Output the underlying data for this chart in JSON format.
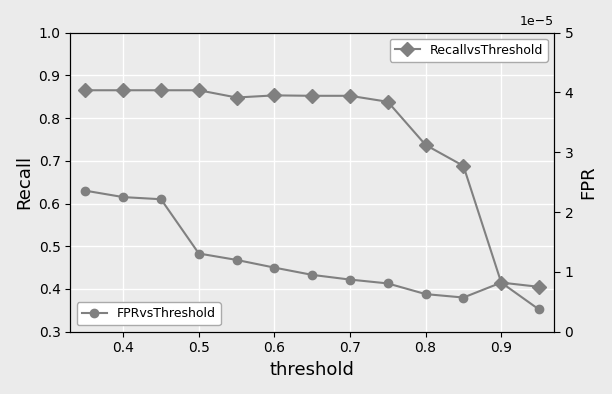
{
  "threshold": [
    0.35,
    0.4,
    0.45,
    0.5,
    0.55,
    0.6,
    0.65,
    0.7,
    0.75,
    0.8,
    0.85,
    0.9,
    0.95
  ],
  "recall": [
    0.865,
    0.865,
    0.865,
    0.865,
    0.848,
    0.853,
    0.852,
    0.852,
    0.838,
    0.737,
    0.688,
    0.415,
    0.405
  ],
  "fpr_left": [
    0.63,
    0.615,
    0.61,
    0.483,
    0.468,
    0.45,
    0.433,
    0.422,
    0.413,
    0.388,
    0.38,
    0.415,
    0.352
  ],
  "recall_label": "RecallvsThreshold",
  "fpr_label": "FPRvsThreshold",
  "xlabel": "threshold",
  "ylabel_left": "Recall",
  "ylabel_right": "FPR",
  "line_color": "#808080",
  "bg_color": "#ebebeb",
  "ylim_left": [
    0.3,
    1.0
  ],
  "ylim_right": [
    0,
    5e-05
  ],
  "xlim": [
    0.33,
    0.97
  ],
  "fpr_scale_min": 0.3,
  "fpr_scale_max": 1.0,
  "fpr_real_min": 0,
  "fpr_real_max": 5e-05
}
